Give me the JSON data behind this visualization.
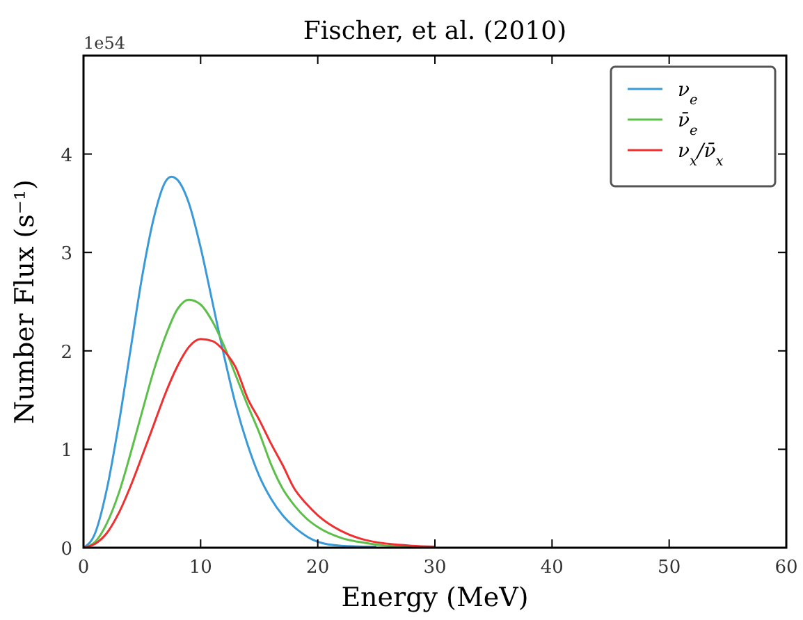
{
  "chart_data": {
    "type": "line",
    "title": "Fischer, et al. (2010)",
    "xlabel": "Energy (MeV)",
    "ylabel": "Number Flux (s⁻¹)",
    "annotations": [
      "1e54"
    ],
    "xlim": [
      0,
      60
    ],
    "xticks": [
      0,
      10,
      20,
      30,
      40,
      50,
      60
    ],
    "ylim": [
      0,
      5
    ],
    "yticks": [
      0,
      1,
      2,
      3,
      4
    ],
    "grid": false,
    "legend": "top right",
    "marker": "none",
    "line_style": "solid",
    "series": [
      {
        "name": "ν$_{e}$",
        "color": "#3a9ad9",
        "x": [
          0,
          1,
          2,
          3,
          4,
          5,
          6,
          7,
          7.5,
          8,
          9,
          10,
          11,
          12,
          13,
          14,
          15,
          16,
          17,
          18,
          20,
          22,
          25
        ],
        "values": [
          0,
          0.15,
          0.6,
          1.25,
          2.0,
          2.75,
          3.35,
          3.72,
          3.77,
          3.74,
          3.5,
          3.05,
          2.5,
          1.95,
          1.45,
          1.05,
          0.73,
          0.5,
          0.33,
          0.21,
          0.06,
          0.02,
          0.01
        ]
      },
      {
        "name": "ν̄$_{e}$",
        "color": "#5cbf4a",
        "x": [
          0,
          1,
          2,
          3,
          4,
          5,
          6,
          7,
          8,
          9,
          10,
          11,
          12,
          13,
          14,
          15,
          16,
          17,
          18,
          19,
          20,
          22,
          24,
          26,
          28
        ],
        "values": [
          0,
          0.06,
          0.25,
          0.55,
          0.95,
          1.38,
          1.8,
          2.15,
          2.42,
          2.52,
          2.47,
          2.3,
          2.05,
          1.75,
          1.45,
          1.17,
          0.85,
          0.6,
          0.43,
          0.3,
          0.21,
          0.1,
          0.05,
          0.02,
          0.01
        ]
      },
      {
        "name": "ν$_{x}$/ν̄$_{x}$",
        "color": "#f03030",
        "x": [
          0,
          1,
          2,
          3,
          4,
          5,
          6,
          7,
          8,
          9,
          10,
          11,
          12,
          13,
          14,
          15,
          16,
          17,
          18,
          19,
          20,
          22,
          24,
          26,
          28,
          30
        ],
        "values": [
          0,
          0.04,
          0.15,
          0.35,
          0.62,
          0.93,
          1.25,
          1.57,
          1.84,
          2.04,
          2.12,
          2.1,
          2.0,
          1.83,
          1.52,
          1.3,
          1.06,
          0.84,
          0.6,
          0.45,
          0.33,
          0.17,
          0.08,
          0.04,
          0.02,
          0.01
        ]
      }
    ]
  }
}
